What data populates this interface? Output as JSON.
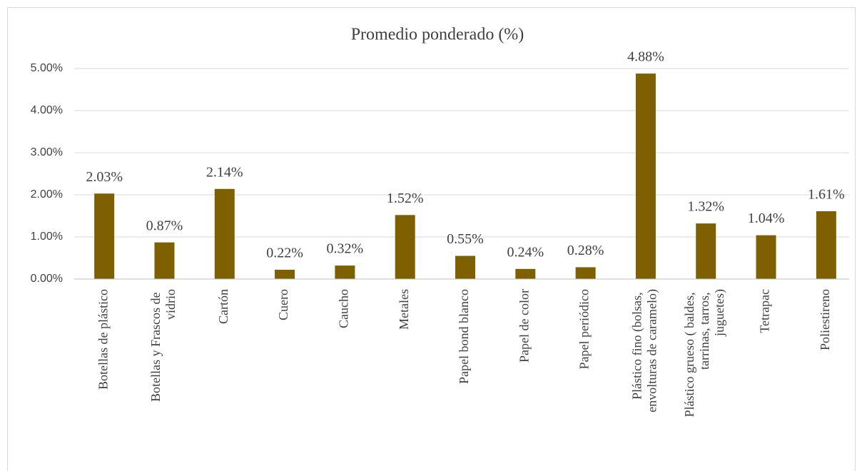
{
  "chart_data": {
    "type": "bar",
    "title": "Promedio ponderado (%)",
    "categories": [
      "Botellas de plástico",
      "Botellas y Frascos de vidrio",
      "Cartón",
      "Cuero",
      "Caucho",
      "Metales",
      "Papel bond blanco",
      "Papel de color",
      "Papel periódico",
      "Plástico fino (bolsas, envolturas de caramelo)",
      "Plástico grueso ( baldes, tarrinas, tarros, juguetes)",
      "Tetrapac",
      "Poliestireno"
    ],
    "values": [
      2.03,
      0.87,
      2.14,
      0.22,
      0.32,
      1.52,
      0.55,
      0.24,
      0.28,
      4.88,
      1.32,
      1.04,
      1.61
    ],
    "value_labels": [
      "2.03%",
      "0.87%",
      "2.14%",
      "0.22%",
      "0.32%",
      "1.52%",
      "0.55%",
      "0.24%",
      "0.28%",
      "4.88%",
      "1.32%",
      "1.04%",
      "1.61%"
    ],
    "color": "#7f6000",
    "ylim": [
      0,
      5
    ],
    "yticks": [
      {
        "value": 0,
        "label": "0.00%"
      },
      {
        "value": 1,
        "label": "1.00%"
      },
      {
        "value": 2,
        "label": "2.00%"
      },
      {
        "value": 3,
        "label": "3.00%"
      },
      {
        "value": 4,
        "label": "4.00%"
      },
      {
        "value": 5,
        "label": "5.00%"
      }
    ],
    "grid": true
  }
}
